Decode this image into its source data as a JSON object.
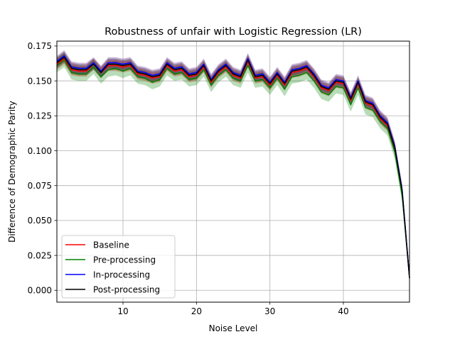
{
  "chart_data": {
    "type": "line",
    "title": "Robustness of unfair with Logistic Regression (LR)",
    "xlabel": "Noise Level",
    "ylabel": "Difference of Demographic Parity",
    "xlim": [
      1,
      49
    ],
    "ylim": [
      -0.0085,
      0.1785
    ],
    "xticks": [
      10,
      20,
      30,
      40
    ],
    "xtick_labels": [
      "10",
      "20",
      "30",
      "40"
    ],
    "yticks": [
      0.0,
      0.025,
      0.05,
      0.075,
      0.1,
      0.125,
      0.15,
      0.175
    ],
    "ytick_labels": [
      "0.000",
      "0.025",
      "0.050",
      "0.075",
      "0.100",
      "0.125",
      "0.150",
      "0.175"
    ],
    "grid": true,
    "legend_position": "lower-left",
    "x": [
      1,
      2,
      3,
      4,
      5,
      6,
      7,
      8,
      9,
      10,
      11,
      12,
      13,
      14,
      15,
      16,
      17,
      18,
      19,
      20,
      21,
      22,
      23,
      24,
      25,
      26,
      27,
      28,
      29,
      30,
      31,
      32,
      33,
      34,
      35,
      36,
      37,
      38,
      39,
      40,
      41,
      42,
      43,
      44,
      45,
      46,
      47,
      48,
      49
    ],
    "series": [
      {
        "name": "Baseline",
        "color": "#ff0000",
        "values": [
          0.162,
          0.166,
          0.158,
          0.157,
          0.157,
          0.162,
          0.156,
          0.161,
          0.161,
          0.16,
          0.161,
          0.155,
          0.154,
          0.152,
          0.153,
          0.161,
          0.157,
          0.158,
          0.153,
          0.154,
          0.16,
          0.149,
          0.156,
          0.16,
          0.154,
          0.152,
          0.164,
          0.152,
          0.153,
          0.147,
          0.154,
          0.147,
          0.156,
          0.157,
          0.159,
          0.153,
          0.145,
          0.143,
          0.149,
          0.148,
          0.136,
          0.148,
          0.134,
          0.132,
          0.123,
          0.118,
          0.101,
          0.07,
          0.009
        ],
        "band": 0.004,
        "band_color": "#ff0000"
      },
      {
        "name": "Pre-processing",
        "color": "#008000",
        "values": [
          0.161,
          0.165,
          0.156,
          0.155,
          0.155,
          0.16,
          0.153,
          0.158,
          0.159,
          0.157,
          0.159,
          0.153,
          0.152,
          0.149,
          0.151,
          0.159,
          0.155,
          0.156,
          0.151,
          0.152,
          0.158,
          0.147,
          0.154,
          0.158,
          0.152,
          0.15,
          0.161,
          0.15,
          0.151,
          0.145,
          0.152,
          0.144,
          0.153,
          0.154,
          0.156,
          0.15,
          0.142,
          0.14,
          0.146,
          0.145,
          0.133,
          0.145,
          0.131,
          0.129,
          0.121,
          0.116,
          0.099,
          0.068,
          0.009
        ],
        "band": 0.005,
        "band_color": "#008000"
      },
      {
        "name": "In-processing",
        "color": "#0000ff",
        "values": [
          0.164,
          0.168,
          0.16,
          0.159,
          0.159,
          0.163,
          0.157,
          0.163,
          0.163,
          0.162,
          0.163,
          0.157,
          0.156,
          0.154,
          0.155,
          0.163,
          0.159,
          0.16,
          0.155,
          0.156,
          0.162,
          0.151,
          0.158,
          0.162,
          0.156,
          0.154,
          0.166,
          0.154,
          0.155,
          0.149,
          0.156,
          0.149,
          0.158,
          0.159,
          0.161,
          0.155,
          0.147,
          0.145,
          0.151,
          0.15,
          0.138,
          0.15,
          0.136,
          0.134,
          0.125,
          0.12,
          0.103,
          0.072,
          0.009
        ],
        "band": 0.004,
        "band_color": "#4b0082"
      },
      {
        "name": "Post-processing",
        "color": "#000000",
        "values": [
          0.163,
          0.167,
          0.159,
          0.158,
          0.158,
          0.162,
          0.156,
          0.162,
          0.162,
          0.161,
          0.162,
          0.156,
          0.155,
          0.153,
          0.154,
          0.162,
          0.158,
          0.159,
          0.154,
          0.155,
          0.161,
          0.15,
          0.157,
          0.161,
          0.155,
          0.153,
          0.165,
          0.153,
          0.154,
          0.148,
          0.155,
          0.148,
          0.157,
          0.158,
          0.16,
          0.154,
          0.146,
          0.144,
          0.15,
          0.149,
          0.137,
          0.149,
          0.135,
          0.133,
          0.124,
          0.119,
          0.102,
          0.071,
          0.009
        ],
        "band": 0.004,
        "band_color": "#000000"
      }
    ]
  }
}
